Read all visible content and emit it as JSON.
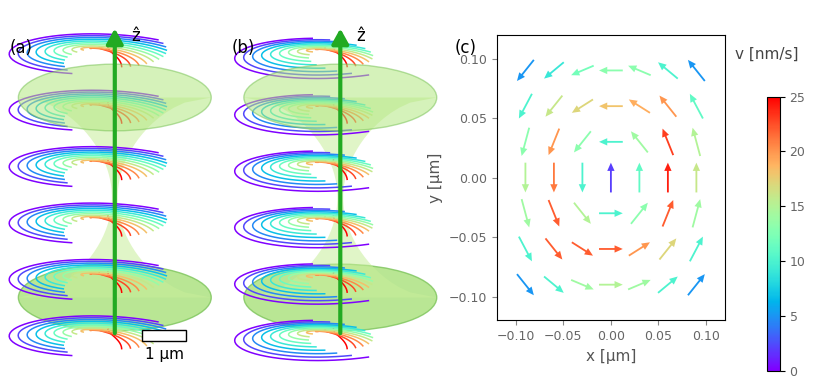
{
  "panels": [
    {
      "label": "(a)",
      "axis_label": "ẑ",
      "scale_bar": "1 μm"
    },
    {
      "label": "(b)",
      "axis_label": "ẑ"
    }
  ],
  "chart_data": {
    "type": "quiver",
    "title": "(c)",
    "x_label": "x [μm]",
    "y_label": "y [μm]",
    "xlim": [
      -0.12,
      0.12
    ],
    "ylim": [
      -0.12,
      0.12
    ],
    "xticks": [
      {
        "value": -0.1,
        "label": "−0.10"
      },
      {
        "value": -0.05,
        "label": "−0.05"
      },
      {
        "value": 0,
        "label": "0.00"
      },
      0.05,
      {
        "value": 0.1,
        "label": "0.10"
      }
    ],
    "yticks": [
      {
        "value": -0.1,
        "label": "−0.10"
      },
      {
        "value": -0.05,
        "label": "−0.05"
      },
      {
        "value": 0,
        "label": "0.00"
      },
      0.05,
      {
        "value": 0.1,
        "label": "0.10"
      }
    ],
    "colorbar": {
      "label": "v [nm/s]",
      "range": [
        0,
        25
      ],
      "ticks": [
        0,
        5,
        10,
        15,
        20,
        25
      ]
    },
    "arrows": {
      "x": [
        -0.09,
        -0.06,
        -0.03,
        0,
        0.03,
        0.06,
        0.09,
        -0.09,
        -0.06,
        -0.03,
        0,
        0.03,
        0.06,
        0.09,
        -0.09,
        -0.06,
        -0.03,
        0,
        0.03,
        0.06,
        0.09,
        -0.09,
        -0.06,
        -0.03,
        0,
        0.03,
        0.06,
        0.09,
        -0.09,
        -0.06,
        -0.03,
        0,
        0.03,
        0.06,
        0.09,
        -0.09,
        -0.06,
        -0.03,
        0,
        0.03,
        0.06,
        0.09,
        -0.09,
        -0.06,
        -0.03,
        0,
        0.03,
        0.06,
        0.09
      ],
      "y": [
        -0.09,
        -0.09,
        -0.09,
        -0.09,
        -0.09,
        -0.09,
        -0.09,
        -0.06,
        -0.06,
        -0.06,
        -0.06,
        -0.06,
        -0.06,
        -0.06,
        -0.03,
        -0.03,
        -0.03,
        -0.03,
        -0.03,
        -0.03,
        -0.03,
        0,
        0,
        0,
        0,
        0,
        0,
        0,
        0.03,
        0.03,
        0.03,
        0.03,
        0.03,
        0.03,
        0.03,
        0.06,
        0.06,
        0.06,
        0.06,
        0.06,
        0.06,
        0.06,
        0.09,
        0.09,
        0.09,
        0.09,
        0.09,
        0.09,
        0.09
      ],
      "u": [
        0.71,
        0.83,
        0.95,
        1,
        0.95,
        0.83,
        0.71,
        0.55,
        0.71,
        0.89,
        1,
        0.89,
        0.71,
        0.55,
        0.32,
        0.45,
        0.71,
        1,
        0.71,
        0.45,
        0.32,
        0,
        0,
        0,
        0,
        0,
        0,
        0,
        -0.32,
        -0.45,
        -0.71,
        -1,
        -0.71,
        -0.45,
        -0.32,
        -0.55,
        -0.71,
        -0.89,
        -1,
        -0.89,
        -0.71,
        -0.55,
        -0.71,
        -0.83,
        -0.95,
        -1,
        -0.95,
        -0.83,
        -0.71
      ],
      "v": [
        -0.71,
        -0.55,
        -0.32,
        0,
        0.32,
        0.55,
        0.71,
        -0.83,
        -0.71,
        -0.45,
        0,
        0.45,
        0.71,
        0.83,
        -0.95,
        -0.89,
        -0.71,
        0,
        0.71,
        0.89,
        0.95,
        -1,
        -1,
        -1,
        1,
        1,
        1,
        1,
        -0.95,
        -0.89,
        -0.71,
        0,
        0.71,
        0.89,
        0.95,
        -0.83,
        -0.71,
        -0.45,
        0,
        0.45,
        0.71,
        0.83,
        -0.71,
        -0.55,
        -0.32,
        0,
        0.32,
        0.55,
        0.71
      ],
      "speed": [
        5,
        10,
        14,
        15,
        14,
        10,
        5,
        10,
        22,
        22,
        22,
        20,
        17,
        10,
        14,
        22,
        15,
        10,
        13,
        22,
        14,
        15,
        21,
        10,
        2,
        11,
        24,
        16,
        13,
        20,
        13,
        10,
        14,
        23,
        15,
        10,
        16,
        17,
        18,
        19,
        20,
        11,
        5,
        9,
        12,
        13,
        13,
        10,
        5
      ]
    }
  }
}
